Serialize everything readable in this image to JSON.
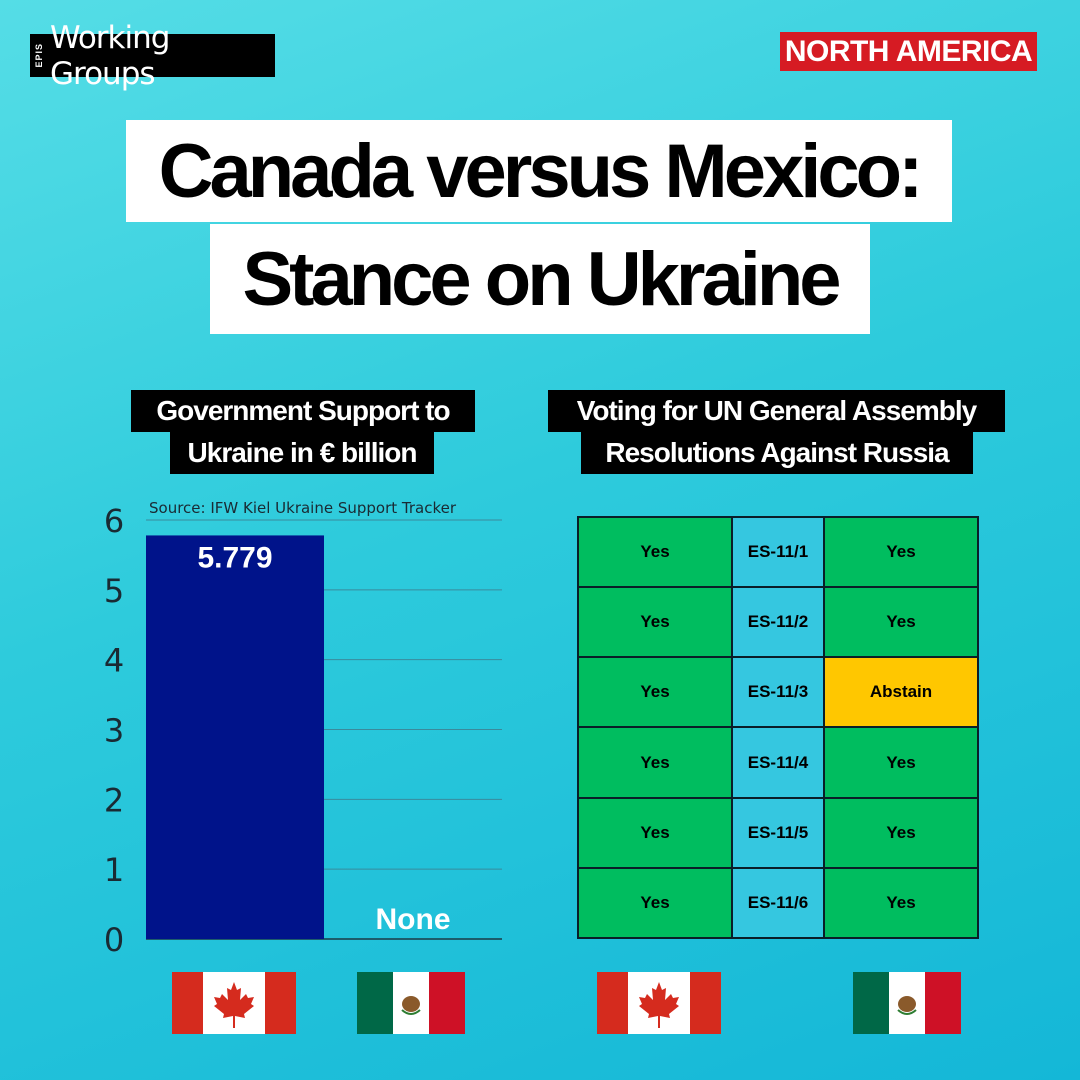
{
  "header": {
    "logo_small": "EPIS",
    "logo_text": "Working Groups",
    "region": "NORTH AMERICA",
    "title_line1": "Canada versus Mexico:",
    "title_line2": "Stance on Ukraine"
  },
  "left_panel": {
    "label_line1": "Government Support to",
    "label_line2": "Ukraine in € billion"
  },
  "right_panel": {
    "label_line1": "Voting for UN General Assembly",
    "label_line2": "Resolutions Against Russia"
  },
  "chart_data": [
    {
      "type": "bar",
      "title": "Government Support to Ukraine in € billion",
      "source": "Source: IFW Kiel Ukraine Support Tracker",
      "categories": [
        "Canada",
        "Mexico"
      ],
      "values": [
        5.779,
        0
      ],
      "data_labels": [
        "5.779",
        "None"
      ],
      "yticks": [
        "0",
        "1",
        "2",
        "3",
        "4",
        "5",
        "6"
      ],
      "ylim": [
        0,
        6
      ],
      "grid": true,
      "colors": {
        "bar": "#00138a",
        "grid": "#3a8a9c"
      }
    },
    {
      "type": "table",
      "title": "Voting for UN General Assembly Resolutions Against Russia",
      "rows": [
        {
          "canada": "Yes",
          "resolution": "ES-11/1",
          "mexico": "Yes"
        },
        {
          "canada": "Yes",
          "resolution": "ES-11/2",
          "mexico": "Yes"
        },
        {
          "canada": "Yes",
          "resolution": "ES-11/3",
          "mexico": "Abstain"
        },
        {
          "canada": "Yes",
          "resolution": "ES-11/4",
          "mexico": "Yes"
        },
        {
          "canada": "Yes",
          "resolution": "ES-11/5",
          "mexico": "Yes"
        },
        {
          "canada": "Yes",
          "resolution": "ES-11/6",
          "mexico": "Yes"
        }
      ],
      "colors": {
        "yes": "#00bd5f",
        "abstain": "#ffc700",
        "resolution": "#35c7e0"
      }
    }
  ],
  "flags": [
    "canada-flag",
    "mexico-flag",
    "canada-flag",
    "mexico-flag"
  ],
  "colors": {
    "brand_red": "#d61b23",
    "background": "#2ecbdc"
  }
}
